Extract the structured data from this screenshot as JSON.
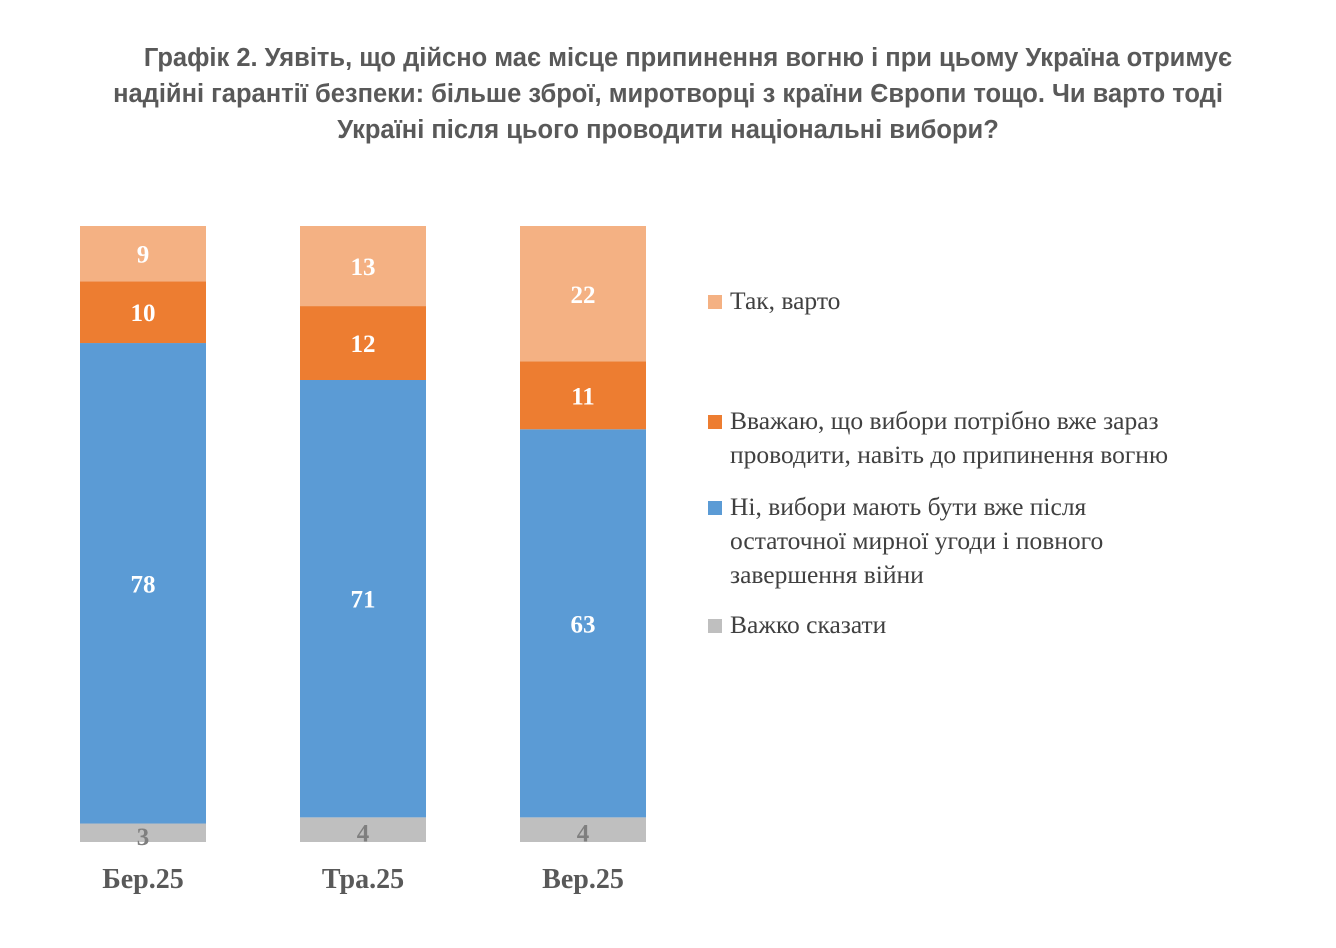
{
  "title_lines": [
    "Графік 2. Уявіть, що дійсно має місце припинення вогню і при цьому Україна отримує",
    "надійні гарантії безпеки: більше зброї, миротворці з країни Європи тощо. Чи варто тоді",
    "Україні після цього проводити національні вибори?"
  ],
  "chart_data": {
    "type": "bar",
    "stacked": true,
    "categories": [
      "Бер.25",
      "Тра.25",
      "Вер.25"
    ],
    "series": [
      {
        "name": "Важко сказати",
        "color": "#bfbfbf",
        "label_color": "#7f7f7f",
        "values": [
          3,
          4,
          4
        ]
      },
      {
        "name": "Ні, вибори мають бути вже після остаточної мирної угоди і повного завершення війни",
        "color": "#5b9bd5",
        "label_color": "#ffffff",
        "values": [
          78,
          71,
          63
        ]
      },
      {
        "name": "Вважаю, що вибори потрібно вже зараз проводити, навіть до припинення вогню",
        "color": "#ed7d31",
        "label_color": "#ffffff",
        "values": [
          10,
          12,
          11
        ]
      },
      {
        "name": "Так, варто",
        "color": "#f4b183",
        "label_color": "#ffffff",
        "values": [
          9,
          13,
          22
        ]
      }
    ],
    "legend_order": [
      3,
      2,
      1,
      0
    ],
    "legend_position": "right",
    "ylim": [
      0,
      100
    ],
    "grid": false
  }
}
